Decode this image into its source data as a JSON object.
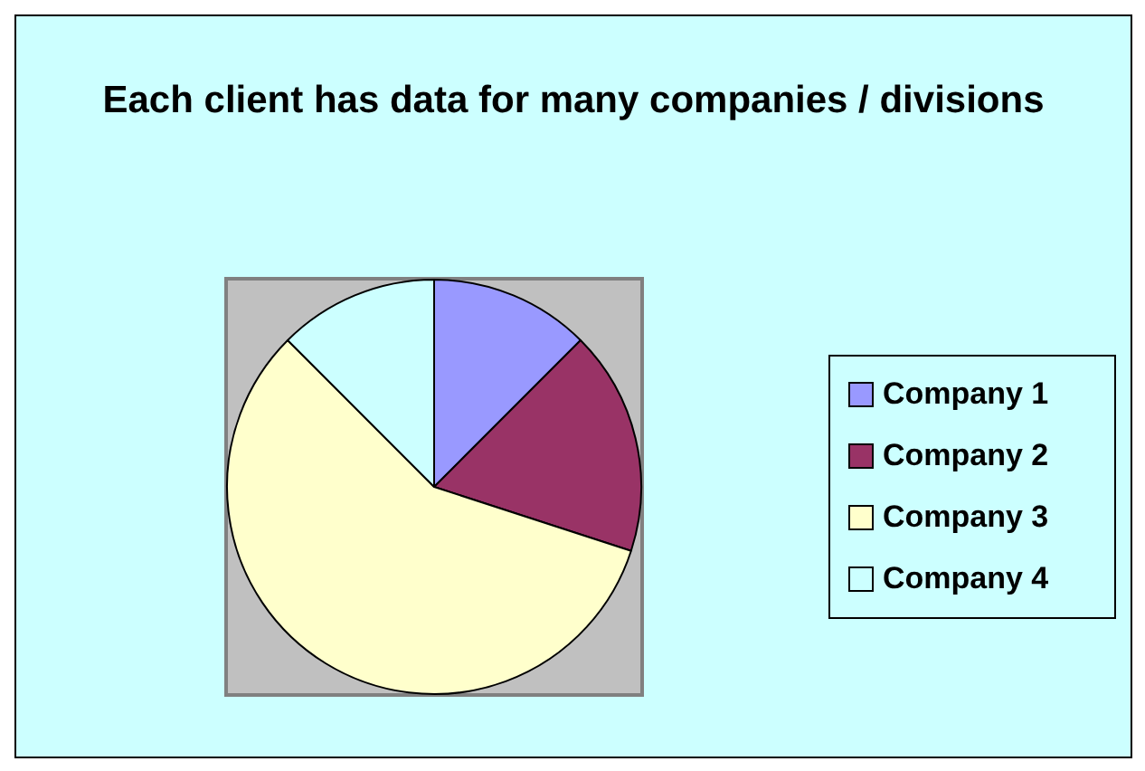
{
  "chart_data": {
    "type": "pie",
    "title": "Each client has data for many companies / divisions",
    "categories": [
      "Company 1",
      "Company 2",
      "Company 3",
      "Company 4"
    ],
    "values": [
      12.5,
      17.5,
      57.5,
      12.5
    ],
    "colors": [
      "#9999ff",
      "#993366",
      "#ffffcc",
      "#ccffff"
    ],
    "legend": "right"
  }
}
